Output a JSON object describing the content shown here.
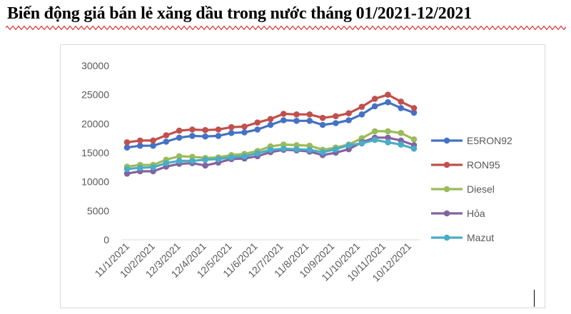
{
  "page": {
    "title": "Biến động giá bán lẻ xăng dầu trong nước tháng 01/2021-12/2021"
  },
  "chart_data": {
    "type": "line",
    "title": "",
    "xlabel": "",
    "ylabel": "",
    "ylim": [
      0,
      30000
    ],
    "yticks": [
      0,
      5000,
      10000,
      15000,
      20000,
      25000,
      30000
    ],
    "x_tick_labels": [
      "11/1/2021",
      "10/2/2021",
      "12/3/2021",
      "12/4/2021",
      "12/5/2021",
      "11/6/2021",
      "12/7/2021",
      "11/8/2021",
      "10/9/2021",
      "11/10/2021",
      "10/11/2021",
      "10/12/2021"
    ],
    "grid": false,
    "legend_position": "right",
    "series": [
      {
        "name": "E5RON92",
        "color": "#4472c4",
        "values": [
          15900,
          16200,
          16200,
          16900,
          17600,
          17900,
          17800,
          17900,
          18400,
          18500,
          19000,
          19800,
          20600,
          20500,
          20500,
          19800,
          20100,
          20600,
          21600,
          23000,
          23700,
          22700,
          21900
        ]
      },
      {
        "name": "RON95",
        "color": "#c0504d",
        "values": [
          16800,
          17100,
          17100,
          18000,
          18800,
          19000,
          18900,
          19000,
          19400,
          19500,
          20200,
          20800,
          21700,
          21600,
          21600,
          21000,
          21300,
          21800,
          22900,
          24300,
          25000,
          23800,
          22700
        ]
      },
      {
        "name": "Diesel",
        "color": "#9bbb59",
        "values": [
          12600,
          12900,
          12900,
          13800,
          14400,
          14300,
          14100,
          14200,
          14600,
          14800,
          15300,
          16100,
          16400,
          16300,
          16200,
          15500,
          15900,
          16400,
          17500,
          18700,
          18700,
          18400,
          17300
        ]
      },
      {
        "name": "Hỏa",
        "color": "#8064a2",
        "values": [
          11400,
          11800,
          11800,
          12600,
          13100,
          13200,
          12800,
          13300,
          13900,
          14000,
          14400,
          15100,
          15500,
          15400,
          15200,
          14600,
          15000,
          15600,
          16800,
          17600,
          17600,
          17100,
          16300
        ]
      },
      {
        "name": "Mazut",
        "color": "#4bacc6",
        "values": [
          12200,
          12400,
          12500,
          13200,
          13600,
          13600,
          13800,
          13900,
          14200,
          14400,
          14900,
          15500,
          15700,
          15600,
          15500,
          15100,
          15600,
          16300,
          16600,
          17200,
          16800,
          16400,
          15700
        ]
      }
    ]
  }
}
